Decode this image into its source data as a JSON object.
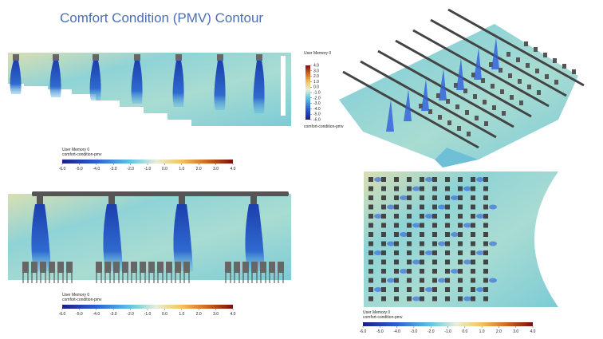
{
  "title": "Comfort Condition (PMV) Contour",
  "colorbars": [
    {
      "title": "User Memory 0",
      "variable": "comfort-condition-pmv",
      "ticks": [
        {
          "value": -6,
          "label": "-6.0"
        },
        {
          "value": -5,
          "label": "-5.0"
        },
        {
          "value": -4,
          "label": "-4.0"
        },
        {
          "value": -3,
          "label": "-3.0"
        },
        {
          "value": -2,
          "label": "-2.0"
        },
        {
          "value": -1,
          "label": "-1.0"
        },
        {
          "value": 0,
          "label": "0.0"
        },
        {
          "value": 1,
          "label": "1.0"
        },
        {
          "value": 2,
          "label": "2.0"
        },
        {
          "value": 3,
          "label": "3.0"
        },
        {
          "value": 4,
          "label": "4.0"
        }
      ]
    },
    {
      "title": "User Memory 0",
      "variable": "comfort-condition-pmv",
      "ticks": [
        {
          "value": 4,
          "label": "4.0"
        },
        {
          "value": 3,
          "label": "3.0"
        },
        {
          "value": 2,
          "label": "2.0"
        },
        {
          "value": 1,
          "label": "1.0"
        },
        {
          "value": 0,
          "label": "0.0"
        },
        {
          "value": -1,
          "label": "-1.0"
        },
        {
          "value": -2,
          "label": "-2.0"
        },
        {
          "value": -3,
          "label": "-3.0"
        },
        {
          "value": -4,
          "label": "-4.0"
        },
        {
          "value": -5,
          "label": "-5.0"
        },
        {
          "value": -6,
          "label": "-6.0"
        }
      ]
    },
    {
      "title": "User Memory 0",
      "variable": "comfort-condition-pmv",
      "ticks": [
        {
          "value": -6,
          "label": "-6.0"
        },
        {
          "value": -5,
          "label": "-5.0"
        },
        {
          "value": -4,
          "label": "-4.0"
        },
        {
          "value": -3,
          "label": "-3.0"
        },
        {
          "value": -2,
          "label": "-2.0"
        },
        {
          "value": -1,
          "label": "-1.0"
        },
        {
          "value": 0,
          "label": "0.0"
        },
        {
          "value": 1,
          "label": "1.0"
        },
        {
          "value": 2,
          "label": "2.0"
        },
        {
          "value": 3,
          "label": "3.0"
        },
        {
          "value": 4,
          "label": "4.0"
        }
      ]
    },
    {
      "title": "User Memory 0",
      "variable": "comfort-condition-pmv",
      "ticks": [
        {
          "value": -6,
          "label": "-6.0"
        },
        {
          "value": -5,
          "label": "-5.0"
        },
        {
          "value": -4,
          "label": "-4.0"
        },
        {
          "value": -3,
          "label": "-3.0"
        },
        {
          "value": -2,
          "label": "-2.0"
        },
        {
          "value": -1,
          "label": "-1.0"
        },
        {
          "value": 0,
          "label": "0.0"
        },
        {
          "value": 1,
          "label": "1.0"
        },
        {
          "value": 2,
          "label": "2.0"
        },
        {
          "value": 3,
          "label": "3.0"
        },
        {
          "value": 4,
          "label": "4.0"
        }
      ]
    }
  ]
}
